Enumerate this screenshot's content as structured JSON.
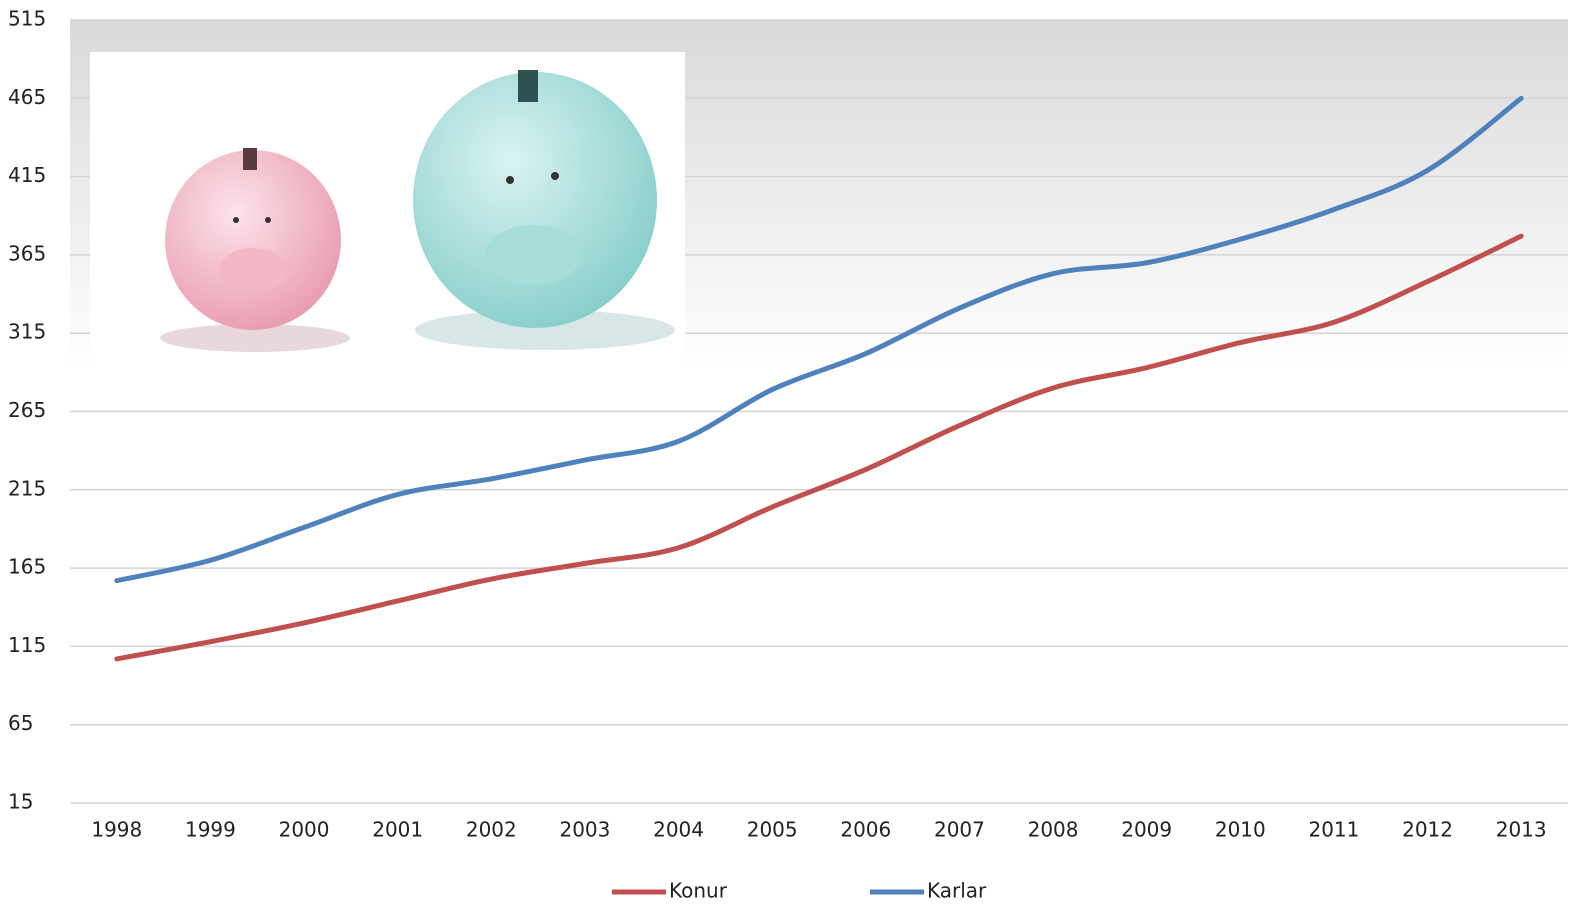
{
  "chart_data": {
    "type": "line",
    "categories": [
      "1998",
      "1999",
      "2000",
      "2001",
      "2002",
      "2003",
      "2004",
      "2005",
      "2006",
      "2007",
      "2008",
      "2009",
      "2010",
      "2011",
      "2012",
      "2013"
    ],
    "series": [
      {
        "name": "Konur",
        "color": "#c0504d",
        "values": [
          107,
          118,
          130,
          144,
          158,
          168,
          178,
          204,
          228,
          256,
          280,
          293,
          309,
          322,
          348,
          377
        ]
      },
      {
        "name": "Karlar",
        "color": "#4f81bd",
        "values": [
          157,
          170,
          191,
          212,
          222,
          234,
          246,
          279,
          302,
          331,
          353,
          360,
          375,
          394,
          419,
          465
        ]
      }
    ],
    "ylim": [
      15,
      515
    ],
    "yticks": [
      15,
      65,
      115,
      165,
      215,
      265,
      315,
      365,
      415,
      465,
      515
    ],
    "grid": true,
    "legend": "bottom"
  }
}
